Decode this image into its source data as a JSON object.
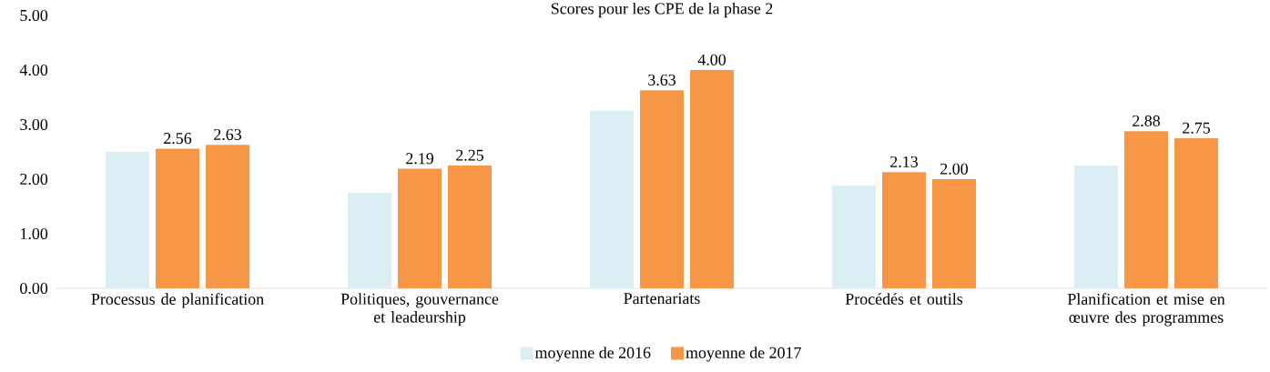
{
  "chart_data": {
    "type": "bar",
    "title": "Scores pour les CPE de la phase 2",
    "categories": [
      "Processus de planification",
      "Politiques, gouvernance et leadeurship",
      "Partenariats",
      "Procédés et outils",
      "Planification et mise en œuvre des programmes"
    ],
    "series": [
      {
        "name": "moyenne de 2016",
        "color": "#daeef3",
        "values": [
          2.5,
          1.75,
          3.25,
          1.88,
          2.25
        ]
      },
      {
        "name": "moyenne de 2017",
        "color": "#f79646",
        "values": [
          2.56,
          2.19,
          3.63,
          2.13,
          2.88
        ],
        "value_labels": [
          "2.56",
          "2.19",
          "3.63",
          "2.13",
          "2.88"
        ]
      },
      {
        "color": "#f79646",
        "values": [
          2.63,
          2.25,
          4.0,
          2.0,
          2.75
        ],
        "value_labels": [
          "2.63",
          "2.25",
          "4.00",
          "2.00",
          "2.75"
        ]
      }
    ],
    "ylim": [
      0,
      5
    ],
    "yticks": [
      {
        "value": 0,
        "label": "0.00"
      },
      {
        "value": 1,
        "label": "1.00"
      },
      {
        "value": 2,
        "label": "2.00"
      },
      {
        "value": 3,
        "label": "3.00"
      },
      {
        "value": 4,
        "label": "4.00"
      },
      {
        "value": 5,
        "label": "5.00"
      }
    ],
    "grid": false,
    "legend": "bottom"
  }
}
